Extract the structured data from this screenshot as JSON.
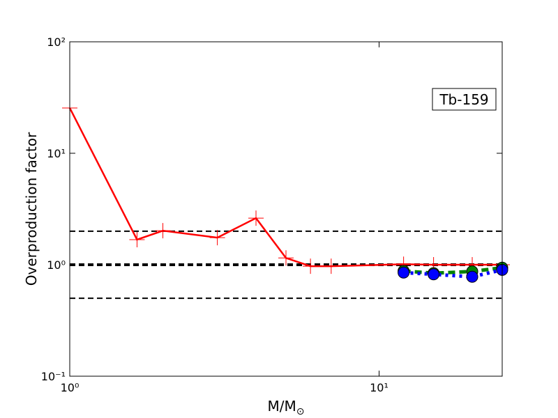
{
  "chart_data": {
    "type": "line",
    "ylabel": "Overproduction factor",
    "xlabel": "M/M",
    "xlabel_subscript": "⊙",
    "annotation": "Tb-159",
    "xscale": "log",
    "yscale": "log",
    "xlim": [
      1,
      25
    ],
    "ylim": [
      0.1,
      100
    ],
    "xticks": [
      {
        "value": 1,
        "label": "10⁰"
      },
      {
        "value": 10,
        "label": "10¹"
      }
    ],
    "yticks": [
      {
        "value": 0.1,
        "label": "10⁻¹"
      },
      {
        "value": 1,
        "label": "10⁰"
      },
      {
        "value": 10,
        "label": "10¹"
      },
      {
        "value": 100,
        "label": "10²"
      }
    ],
    "hlines": [
      2,
      1,
      0.5
    ],
    "hline_widths": [
      2,
      4,
      2
    ],
    "series": [
      {
        "color": "#ff0000",
        "linestyle": "solid",
        "marker": "plus",
        "x": [
          1,
          1.65,
          2,
          3,
          4,
          5,
          6,
          7,
          12,
          15,
          20,
          25
        ],
        "values": [
          25.5,
          1.68,
          2.02,
          1.75,
          2.62,
          1.15,
          0.97,
          0.97,
          1.01,
          1.0,
          1.0,
          1.0
        ]
      },
      {
        "color": "#008000",
        "linestyle": "dashed",
        "marker": "circle",
        "x": [
          12,
          15,
          20,
          25
        ],
        "values": [
          0.88,
          0.84,
          0.87,
          0.94
        ]
      },
      {
        "color": "#0000ff",
        "linestyle": "dotted",
        "marker": "circle",
        "x": [
          12,
          15,
          20,
          25
        ],
        "values": [
          0.85,
          0.82,
          0.78,
          0.9
        ]
      }
    ]
  }
}
